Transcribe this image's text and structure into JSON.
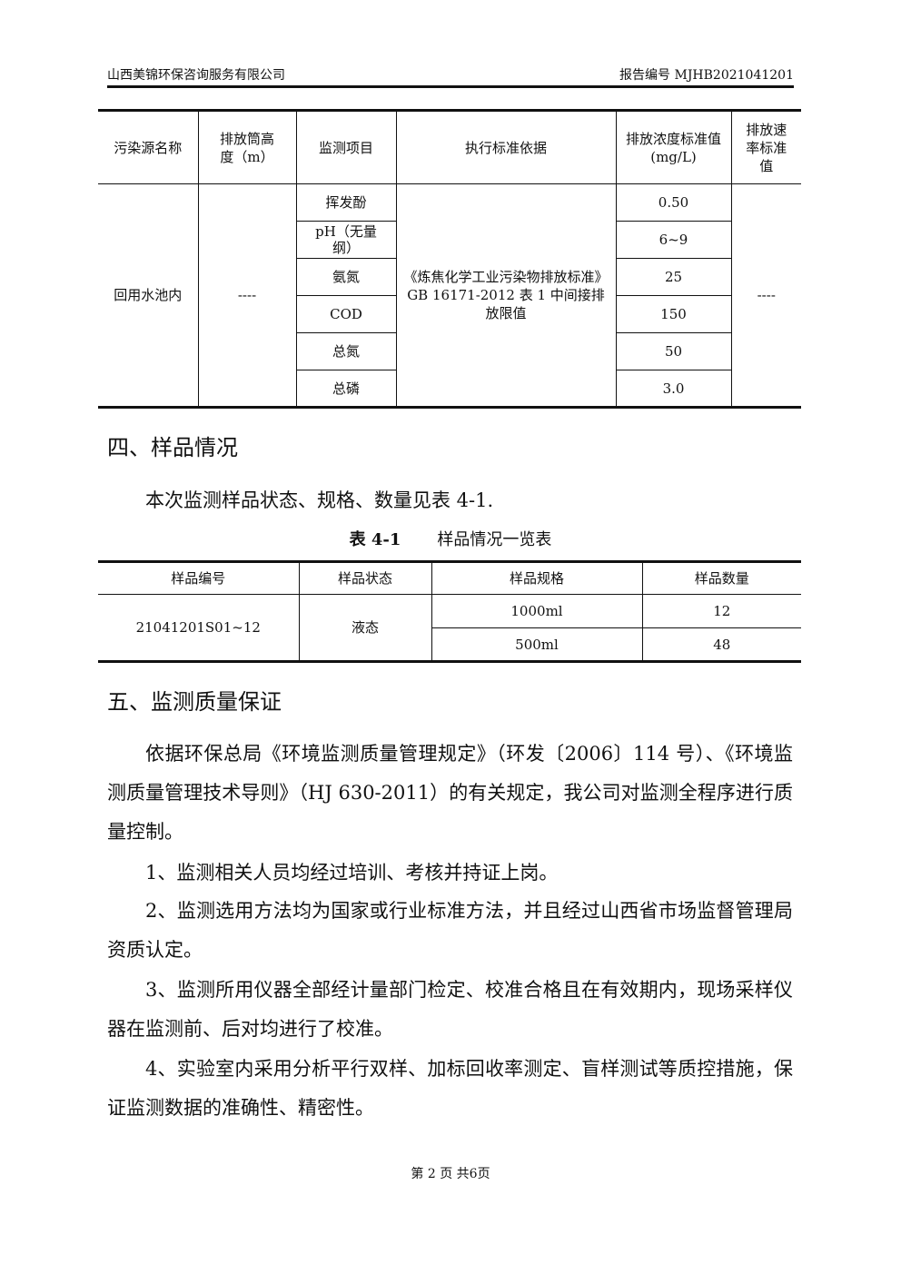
{
  "header": {
    "company": "山西美锦环保咨询服务有限公司",
    "report_no": "报告编号 MJHB2021041201"
  },
  "table1": {
    "headers": [
      "污染源名称",
      "排放筒高度（m）",
      "监测项目",
      "执行标准依据",
      "排放浓度标准值(mg/L)",
      "排放速率标准值"
    ],
    "source": "回用水池内",
    "height": "----",
    "standard": "《炼焦化学工业污染物排放标准》GB 16171-2012 表 1 中间接排放限值",
    "rate": "----",
    "rows": [
      {
        "item": "挥发酚",
        "value": "0.50"
      },
      {
        "item": "pH（无量纲）",
        "value": "6~9"
      },
      {
        "item": "氨氮",
        "value": "25"
      },
      {
        "item": "COD",
        "value": "150"
      },
      {
        "item": "总氮",
        "value": "50"
      },
      {
        "item": "总磷",
        "value": "3.0"
      }
    ]
  },
  "section4": {
    "title": "四、样品情况",
    "intro": "本次监测样品状态、规格、数量见表 4-1.",
    "caption_no": "表 4-1",
    "caption_title": "样品情况一览表"
  },
  "table2": {
    "headers": [
      "样品编号",
      "样品状态",
      "样品规格",
      "样品数量"
    ],
    "sample_id": "21041201S01~12",
    "state": "液态",
    "rows": [
      {
        "spec": "1000ml",
        "qty": "12"
      },
      {
        "spec": "500ml",
        "qty": "48"
      }
    ]
  },
  "section5": {
    "title": "五、监测质量保证",
    "paragraphs": [
      "依据环保总局《环境监测质量管理规定》（环发〔2006〕114 号）、《环境监测质量管理技术导则》（HJ 630-2011）的有关规定，我公司对监测全程序进行质量控制。",
      "1、监测相关人员均经过培训、考核并持证上岗。",
      "2、监测选用方法均为国家或行业标准方法，并且经过山西省市场监督管理局资质认定。",
      "3、监测所用仪器全部经计量部门检定、校准合格且在有效期内，现场采样仪器在监测前、后对均进行了校准。",
      "4、实验室内采用分析平行双样、加标回收率测定、盲样测试等质控措施，保证监测数据的准确性、精密性。"
    ]
  },
  "footer": {
    "page": "第 2 页 共6页"
  }
}
